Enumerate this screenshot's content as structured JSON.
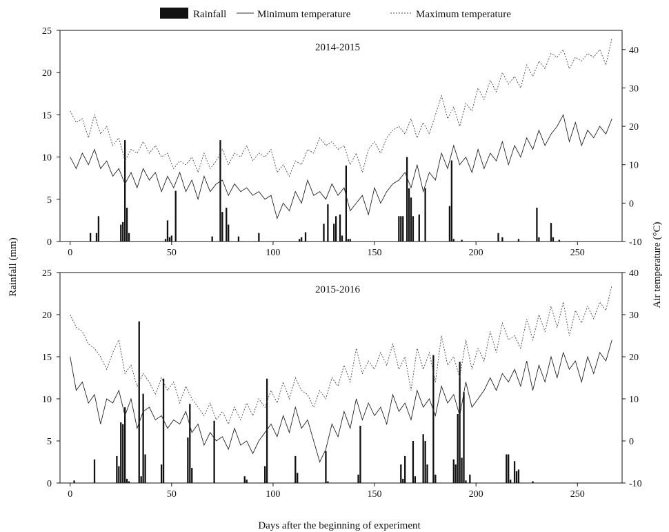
{
  "figure": {
    "legend": {
      "rainfall": "Rainfall",
      "tmin": "Minimum temperature",
      "tmax": "Maximum temperature"
    },
    "xlabel": "Days after the beginning of experiment",
    "ylabel_left": "Rainfall (mm)",
    "ylabel_right": "Air temperature (°C)"
  },
  "chart_data": [
    {
      "type": "bar",
      "title": "2014-2015",
      "xlim": [
        -5,
        272
      ],
      "x_ticks": [
        0,
        50,
        100,
        150,
        200,
        250
      ],
      "rain_ylim": [
        0,
        25
      ],
      "rain_ticks": [
        0,
        5,
        10,
        15,
        20,
        25
      ],
      "temp_ylim": [
        -10,
        45
      ],
      "temp_ticks": [
        -10,
        0,
        10,
        20,
        30,
        40
      ],
      "rainfall": {
        "x": [
          10,
          13,
          14,
          25,
          26,
          27,
          28,
          29,
          47,
          48,
          49,
          50,
          52,
          70,
          74,
          75,
          77,
          78,
          83,
          93,
          113,
          114,
          116,
          125,
          127,
          130,
          131,
          133,
          134,
          136,
          137,
          138,
          162,
          163,
          164,
          166,
          167,
          168,
          169,
          172,
          175,
          187,
          188,
          189,
          193,
          211,
          213,
          221,
          230,
          231,
          237,
          238,
          241
        ],
        "values": [
          1.0,
          1.0,
          3.0,
          2.0,
          2.3,
          12.0,
          4.0,
          1.0,
          0.3,
          2.5,
          0.5,
          0.7,
          6.0,
          0.6,
          12.0,
          3.5,
          4.0,
          2.0,
          0.6,
          1.0,
          0.3,
          0.5,
          1.1,
          2.1,
          4.4,
          2.1,
          3.0,
          3.2,
          0.7,
          9.0,
          0.3,
          0.3,
          3.0,
          3.0,
          3.0,
          10.0,
          6.3,
          5.2,
          3.0,
          3.2,
          6.3,
          4.2,
          9.6,
          0.3,
          0.2,
          1.0,
          0.5,
          0.3,
          4.0,
          0.5,
          2.2,
          0.5,
          0.2
        ]
      },
      "series": [
        {
          "name": "Minimum temperature",
          "x": [
            0,
            3,
            6,
            9,
            12,
            15,
            18,
            21,
            24,
            27,
            30,
            33,
            36,
            39,
            42,
            45,
            48,
            51,
            54,
            57,
            60,
            63,
            66,
            69,
            72,
            75,
            78,
            81,
            84,
            87,
            90,
            93,
            96,
            99,
            102,
            105,
            108,
            111,
            114,
            117,
            120,
            123,
            126,
            129,
            132,
            135,
            138,
            141,
            144,
            147,
            150,
            153,
            156,
            159,
            162,
            165,
            168,
            171,
            174,
            177,
            180,
            183,
            186,
            189,
            192,
            195,
            198,
            201,
            204,
            207,
            210,
            213,
            216,
            219,
            222,
            225,
            228,
            231,
            234,
            237,
            240,
            243,
            246,
            249,
            252,
            255,
            258,
            261,
            264,
            267
          ],
          "values": [
            12,
            9,
            13,
            10,
            14,
            9,
            11,
            7,
            9,
            5,
            8,
            4,
            9,
            6,
            8,
            3,
            7,
            4,
            8,
            3,
            6,
            1,
            7,
            3,
            5,
            6,
            2,
            5,
            3,
            4,
            2,
            3,
            1,
            2,
            -4,
            0,
            -2,
            3,
            0,
            6,
            2,
            3,
            1,
            5,
            2,
            4,
            -2,
            0,
            2,
            -3,
            4,
            0,
            3,
            5,
            6,
            8,
            4,
            10,
            3,
            8,
            6,
            13,
            9,
            15,
            10,
            12,
            8,
            14,
            9,
            13,
            11,
            16,
            10,
            15,
            12,
            17,
            14,
            19,
            15,
            18,
            20,
            23,
            16,
            21,
            15,
            19,
            17,
            20,
            18,
            22
          ]
        },
        {
          "name": "Maximum temperature",
          "x": [
            0,
            3,
            6,
            9,
            12,
            15,
            18,
            21,
            24,
            27,
            30,
            33,
            36,
            39,
            42,
            45,
            48,
            51,
            54,
            57,
            60,
            63,
            66,
            69,
            72,
            75,
            78,
            81,
            84,
            87,
            90,
            93,
            96,
            99,
            102,
            105,
            108,
            111,
            114,
            117,
            120,
            123,
            126,
            129,
            132,
            135,
            138,
            141,
            144,
            147,
            150,
            153,
            156,
            159,
            162,
            165,
            168,
            171,
            174,
            177,
            180,
            183,
            186,
            189,
            192,
            195,
            198,
            201,
            204,
            207,
            210,
            213,
            216,
            219,
            222,
            225,
            228,
            231,
            234,
            237,
            240,
            243,
            246,
            249,
            252,
            255,
            258,
            261,
            264,
            267
          ],
          "values": [
            24,
            21,
            22,
            17,
            23,
            18,
            20,
            15,
            17,
            11,
            14,
            13,
            16,
            13,
            15,
            12,
            13,
            9,
            11,
            10,
            12,
            8,
            13,
            9,
            11,
            14,
            10,
            13,
            12,
            15,
            11,
            13,
            12,
            14,
            8,
            10,
            7,
            11,
            10,
            14,
            13,
            17,
            15,
            16,
            14,
            15,
            10,
            13,
            8,
            14,
            16,
            13,
            17,
            19,
            20,
            18,
            22,
            17,
            21,
            18,
            23,
            28,
            22,
            25,
            20,
            26,
            24,
            30,
            27,
            32,
            29,
            34,
            31,
            33,
            30,
            36,
            33,
            37,
            35,
            39,
            38,
            40,
            35,
            38,
            37,
            39,
            38,
            40,
            36,
            43
          ]
        }
      ]
    },
    {
      "type": "bar",
      "title": "2015-2016",
      "xlim": [
        -5,
        272
      ],
      "x_ticks": [
        0,
        50,
        100,
        150,
        200,
        250
      ],
      "rain_ylim": [
        0,
        25
      ],
      "rain_ticks": [
        0,
        5,
        10,
        15,
        20,
        25
      ],
      "temp_ylim": [
        -10,
        40
      ],
      "temp_ticks": [
        -10,
        0,
        10,
        20,
        30,
        40
      ],
      "rainfall": {
        "x": [
          2,
          12,
          23,
          24,
          25,
          26,
          27,
          28,
          29,
          34,
          35,
          36,
          37,
          45,
          46,
          58,
          59,
          60,
          71,
          86,
          87,
          96,
          97,
          111,
          112,
          126,
          127,
          142,
          143,
          163,
          164,
          165,
          169,
          170,
          174,
          175,
          176,
          179,
          180,
          189,
          190,
          191,
          192,
          193,
          194,
          195,
          197,
          215,
          216,
          217,
          219,
          220,
          221,
          228
        ],
        "values": [
          0.3,
          2.8,
          3.2,
          2.0,
          7.2,
          7.0,
          9.0,
          0.5,
          0.2,
          19.2,
          0.8,
          10.6,
          3.4,
          2.2,
          12.4,
          5.4,
          9.4,
          1.8,
          7.4,
          0.8,
          0.4,
          2.0,
          12.4,
          3.2,
          1.2,
          3.8,
          0.2,
          1.0,
          6.8,
          2.2,
          0.5,
          3.2,
          5.0,
          0.8,
          5.8,
          5.0,
          2.2,
          15.2,
          1.0,
          2.8,
          2.2,
          8.2,
          14.4,
          3.0,
          10.8,
          0.3,
          1.0,
          3.4,
          3.4,
          0.4,
          2.6,
          1.4,
          1.6,
          0.2
        ]
      },
      "series": [
        {
          "name": "Minimum temperature",
          "x": [
            0,
            3,
            6,
            9,
            12,
            15,
            18,
            21,
            24,
            27,
            30,
            33,
            36,
            39,
            42,
            45,
            48,
            51,
            54,
            57,
            60,
            63,
            66,
            69,
            72,
            75,
            78,
            81,
            84,
            87,
            90,
            93,
            96,
            99,
            102,
            105,
            108,
            111,
            114,
            117,
            120,
            123,
            126,
            129,
            132,
            135,
            138,
            141,
            144,
            147,
            150,
            153,
            156,
            159,
            162,
            165,
            168,
            171,
            174,
            177,
            180,
            183,
            186,
            189,
            192,
            195,
            198,
            201,
            204,
            207,
            210,
            213,
            216,
            219,
            222,
            225,
            228,
            231,
            234,
            237,
            240,
            243,
            246,
            249,
            252,
            255,
            258,
            261,
            264,
            267
          ],
          "values": [
            20,
            12,
            14,
            9,
            11,
            4,
            10,
            9,
            12,
            6,
            10,
            3,
            7,
            8,
            5,
            6,
            3,
            5,
            4,
            7,
            2,
            4,
            -1,
            2,
            0,
            1,
            -2,
            3,
            -1,
            0,
            -3,
            0,
            2,
            4,
            1,
            6,
            2,
            8,
            3,
            5,
            0,
            -5,
            -2,
            4,
            1,
            7,
            3,
            10,
            5,
            9,
            6,
            8,
            4,
            11,
            7,
            9,
            5,
            12,
            8,
            10,
            6,
            13,
            9,
            11,
            6,
            14,
            8,
            10,
            12,
            15,
            12,
            16,
            14,
            17,
            13,
            19,
            12,
            18,
            14,
            20,
            15,
            21,
            17,
            19,
            14,
            20,
            16,
            21,
            19,
            24
          ]
        },
        {
          "name": "Maximum temperature",
          "x": [
            0,
            3,
            6,
            9,
            12,
            15,
            18,
            21,
            24,
            27,
            30,
            33,
            36,
            39,
            42,
            45,
            48,
            51,
            54,
            57,
            60,
            63,
            66,
            69,
            72,
            75,
            78,
            81,
            84,
            87,
            90,
            93,
            96,
            99,
            102,
            105,
            108,
            111,
            114,
            117,
            120,
            123,
            126,
            129,
            132,
            135,
            138,
            141,
            144,
            147,
            150,
            153,
            156,
            159,
            162,
            165,
            168,
            171,
            174,
            177,
            180,
            183,
            186,
            189,
            192,
            195,
            198,
            201,
            204,
            207,
            210,
            213,
            216,
            219,
            222,
            225,
            228,
            231,
            234,
            237,
            240,
            243,
            246,
            249,
            252,
            255,
            258,
            261,
            264,
            267
          ],
          "values": [
            30,
            27,
            26,
            23,
            22,
            20,
            17,
            21,
            24,
            16,
            18,
            13,
            16,
            14,
            11,
            15,
            12,
            14,
            9,
            13,
            10,
            8,
            6,
            9,
            5,
            7,
            4,
            8,
            5,
            9,
            6,
            10,
            8,
            12,
            9,
            14,
            10,
            15,
            12,
            11,
            8,
            12,
            10,
            15,
            13,
            18,
            14,
            22,
            16,
            19,
            17,
            21,
            18,
            23,
            17,
            20,
            12,
            22,
            17,
            21,
            14,
            25,
            18,
            20,
            15,
            24,
            17,
            22,
            19,
            26,
            21,
            28,
            24,
            25,
            22,
            29,
            24,
            30,
            26,
            32,
            27,
            33,
            25,
            31,
            28,
            32,
            29,
            33,
            31,
            37
          ]
        }
      ]
    }
  ]
}
